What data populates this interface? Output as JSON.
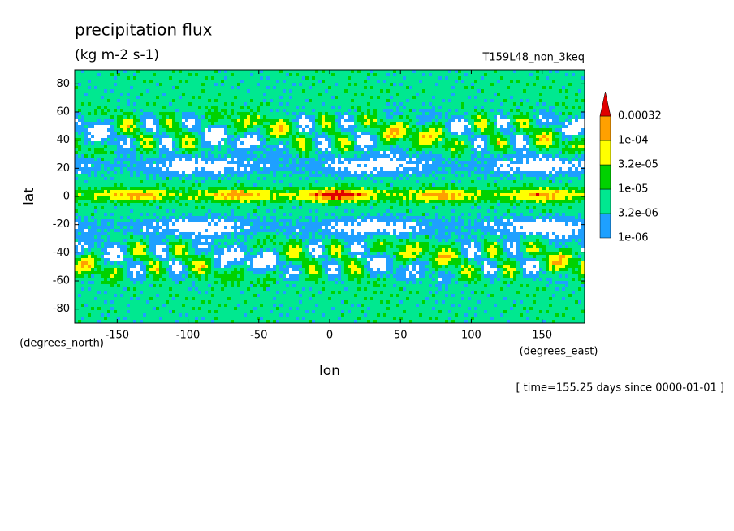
{
  "chart_data": {
    "type": "contour",
    "title": "precipitation flux",
    "subtitle": "(kg m-2 s-1)",
    "run_label": "T159L48_non_3keq",
    "x_label": "lon",
    "y_label": "lat",
    "x_unit_label": "(degrees_east)",
    "y_unit_label": "(degrees_north)",
    "time_label": "[ time=155.25 days since 0000-01-01 ]",
    "xlim": [
      -180,
      180
    ],
    "ylim": [
      -90,
      90
    ],
    "xticks": [
      -150,
      -100,
      -50,
      0,
      50,
      100,
      150
    ],
    "yticks": [
      -80,
      -60,
      -40,
      -20,
      0,
      20,
      40,
      60,
      80
    ],
    "levels": [
      {
        "value": 1e-06,
        "label": "1e-06"
      },
      {
        "value": 3.2e-06,
        "label": "3.2e-06"
      },
      {
        "value": 1e-05,
        "label": "1e-05"
      },
      {
        "value": 3.2e-05,
        "label": "3.2e-05"
      },
      {
        "value": 0.0001,
        "label": "1e-04"
      },
      0.00032
    ],
    "level_colors": [
      "#1ea0ff",
      "#00e890",
      "#00d200",
      "#ffff00",
      "#ffa000",
      "#e00000"
    ]
  }
}
